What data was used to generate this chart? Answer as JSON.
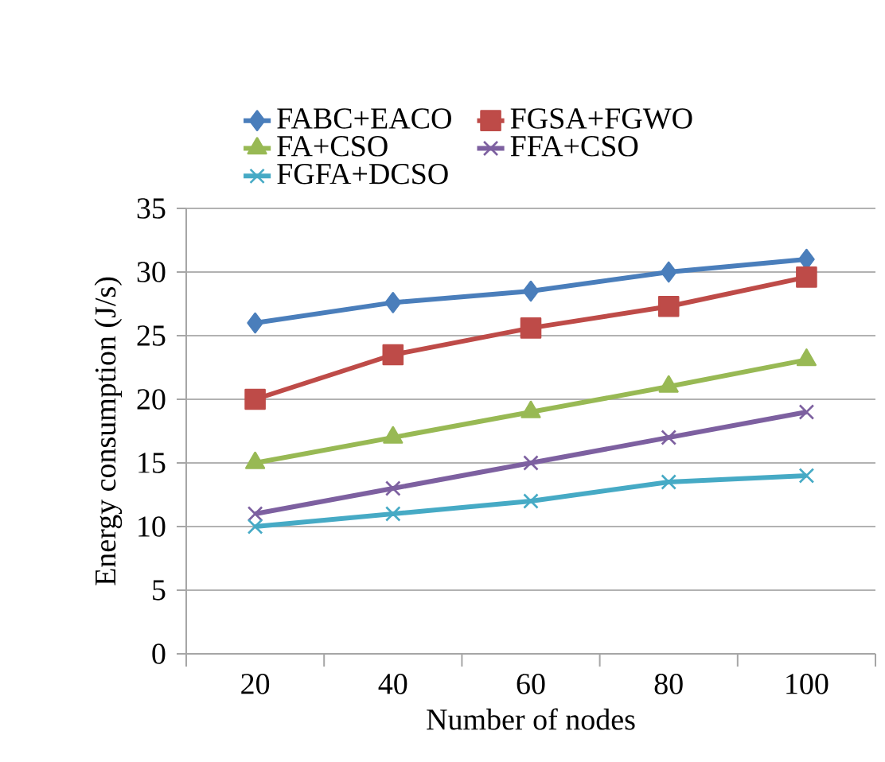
{
  "chart_data": {
    "type": "line",
    "xlabel": "Number of  nodes",
    "ylabel": "Energy consumption (J/s)",
    "categories": [
      "20",
      "40",
      "60",
      "80",
      "100"
    ],
    "ylim": [
      0,
      35
    ],
    "yticks": [
      0,
      5,
      10,
      15,
      20,
      25,
      30,
      35
    ],
    "grid": "y",
    "legend": "top",
    "series": [
      {
        "name": "FABC+EACO",
        "color": "#4a7ebb",
        "marker": "diamond",
        "values": [
          26,
          27.6,
          28.5,
          30,
          31
        ]
      },
      {
        "name": "FGSA+FGWO",
        "color": "#be4b48",
        "marker": "square",
        "values": [
          20,
          23.5,
          25.6,
          27.3,
          29.6
        ]
      },
      {
        "name": "FA+CSO",
        "color": "#98b954",
        "marker": "triangle",
        "values": [
          15,
          17,
          19,
          21,
          23.1
        ]
      },
      {
        "name": "FFA+CSO",
        "color": "#7d60a0",
        "marker": "cross",
        "values": [
          11,
          13,
          15,
          17,
          19
        ]
      },
      {
        "name": "FGFA+DCSO",
        "color": "#46aac5",
        "marker": "cross",
        "values": [
          10,
          11,
          12,
          13.5,
          14
        ]
      }
    ]
  }
}
